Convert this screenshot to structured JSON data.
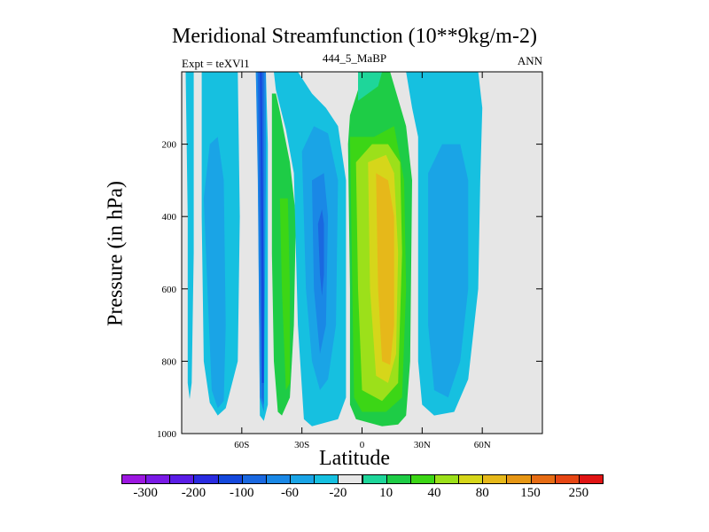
{
  "chart_data": {
    "type": "contour",
    "title": "Meridional Streamfunction (10**9kg/m-2)",
    "left_label": "Expt = teXVl1",
    "center_label": "444_5_MaBP",
    "right_label": "ANN",
    "xlabel": "Latitude",
    "ylabel": "Pressure (in hPa)",
    "xlim": [
      -90,
      90
    ],
    "ylim": [
      1000,
      0
    ],
    "x_ticks": [
      {
        "value": -60,
        "label": "60S"
      },
      {
        "value": -30,
        "label": "30S"
      },
      {
        "value": 0,
        "label": "0"
      },
      {
        "value": 30,
        "label": "30N"
      },
      {
        "value": 60,
        "label": "60N"
      }
    ],
    "y_ticks": [
      {
        "value": 200,
        "label": "200"
      },
      {
        "value": 400,
        "label": "400"
      },
      {
        "value": 600,
        "label": "600"
      },
      {
        "value": 800,
        "label": "800"
      },
      {
        "value": 1000,
        "label": "1000"
      }
    ],
    "colorbar": {
      "colors": [
        "#9c17e0",
        "#7a1ae6",
        "#5a1de6",
        "#2a2be0",
        "#1448dc",
        "#1a68e0",
        "#1a88e6",
        "#1aa4e6",
        "#16c0e0",
        "#e6e6e6",
        "#1ed69a",
        "#1ecc46",
        "#3cd616",
        "#9ce01a",
        "#d6d61a",
        "#e6b81a",
        "#e69614",
        "#e66c14",
        "#e64614",
        "#e01414"
      ],
      "labels": [
        "-300",
        "-200",
        "-100",
        "-60",
        "-20",
        "10",
        "40",
        "80",
        "150",
        "250"
      ]
    },
    "regions": [
      {
        "name": "cell-far-south",
        "color": "#16c0e0",
        "polygon": [
          [
            -88,
            0
          ],
          [
            -87,
            400
          ],
          [
            -87,
            860
          ],
          [
            -86,
            905
          ],
          [
            -85,
            860
          ],
          [
            -84,
            500
          ],
          [
            -84,
            0
          ]
        ]
      },
      {
        "name": "cell-south-polar",
        "color": "#16c0e0",
        "polygon": [
          [
            -80,
            0
          ],
          [
            -80,
            400
          ],
          [
            -79,
            800
          ],
          [
            -76,
            915
          ],
          [
            -72,
            950
          ],
          [
            -68,
            930
          ],
          [
            -62,
            800
          ],
          [
            -61,
            400
          ],
          [
            -62,
            0
          ],
          [
            -53,
            0
          ],
          [
            -52,
            200
          ],
          [
            -51,
            950
          ],
          [
            -49,
            965
          ],
          [
            -47,
            920
          ],
          [
            -47,
            200
          ],
          [
            -48,
            0
          ]
        ]
      },
      {
        "name": "cell-south-polar-inner",
        "color": "#1aa4e6",
        "polygon": [
          [
            -79,
            350
          ],
          [
            -77,
            620
          ],
          [
            -75,
            880
          ],
          [
            -72,
            930
          ],
          [
            -69,
            910
          ],
          [
            -68,
            700
          ],
          [
            -69,
            300
          ],
          [
            -72,
            180
          ],
          [
            -76,
            200
          ]
        ]
      },
      {
        "name": "cell-60s-strip",
        "color": "#1a88e6",
        "polygon": [
          [
            -53,
            0
          ],
          [
            -52,
            300
          ],
          [
            -51,
            900
          ],
          [
            -49,
            940
          ],
          [
            -48,
            300
          ],
          [
            -48,
            0
          ]
        ]
      },
      {
        "name": "cell-60s-core",
        "color": "#1a68e0",
        "polygon": [
          [
            -52,
            0
          ],
          [
            -51,
            500
          ],
          [
            -50,
            900
          ],
          [
            -49,
            920
          ],
          [
            -49,
            500
          ],
          [
            -49,
            0
          ]
        ]
      },
      {
        "name": "cell-60s-peak",
        "color": "#1448dc",
        "polygon": [
          [
            -51,
            0
          ],
          [
            -50,
            600
          ],
          [
            -50,
            860
          ],
          [
            -49,
            860
          ],
          [
            -49,
            600
          ],
          [
            -50,
            0
          ]
        ]
      },
      {
        "name": "cell-ferrel-south",
        "color": "#1ecc46",
        "polygon": [
          [
            -45,
            60
          ],
          [
            -45,
            500
          ],
          [
            -44,
            800
          ],
          [
            -42,
            940
          ],
          [
            -40,
            950
          ],
          [
            -36,
            900
          ],
          [
            -34,
            700
          ],
          [
            -33,
            400
          ],
          [
            -36,
            250
          ],
          [
            -41,
            110
          ],
          [
            -43,
            60
          ]
        ]
      },
      {
        "name": "cell-ferrel-south-inner",
        "color": "#3cd616",
        "polygon": [
          [
            -41,
            350
          ],
          [
            -40,
            600
          ],
          [
            -38,
            880
          ],
          [
            -36,
            860
          ],
          [
            -36,
            600
          ],
          [
            -37,
            350
          ]
        ]
      },
      {
        "name": "cell-hadley-south",
        "color": "#16c0e0",
        "polygon": [
          [
            -44,
            0
          ],
          [
            -43,
            50
          ],
          [
            -38,
            160
          ],
          [
            -34,
            280
          ],
          [
            -32,
            700
          ],
          [
            -29,
            960
          ],
          [
            -25,
            980
          ],
          [
            -12,
            960
          ],
          [
            -8,
            900
          ],
          [
            -8,
            300
          ],
          [
            -12,
            150
          ],
          [
            -18,
            100
          ],
          [
            -25,
            60
          ],
          [
            -32,
            0
          ]
        ]
      },
      {
        "name": "cell-hadley-south-1",
        "color": "#1aa4e6",
        "polygon": [
          [
            -30,
            220
          ],
          [
            -28,
            600
          ],
          [
            -25,
            800
          ],
          [
            -21,
            880
          ],
          [
            -17,
            850
          ],
          [
            -13,
            700
          ],
          [
            -12,
            300
          ],
          [
            -17,
            170
          ],
          [
            -24,
            150
          ]
        ]
      },
      {
        "name": "cell-hadley-south-2",
        "color": "#1a88e6",
        "polygon": [
          [
            -25,
            300
          ],
          [
            -24,
            600
          ],
          [
            -21,
            780
          ],
          [
            -18,
            700
          ],
          [
            -17,
            400
          ],
          [
            -19,
            280
          ]
        ]
      },
      {
        "name": "cell-hadley-south-3",
        "color": "#1a68e0",
        "polygon": [
          [
            -22,
            420
          ],
          [
            -21,
            560
          ],
          [
            -20,
            620
          ],
          [
            -19,
            560
          ],
          [
            -19,
            420
          ],
          [
            -20,
            380
          ]
        ]
      },
      {
        "name": "cell-hadley-north",
        "color": "#1ecc46",
        "polygon": [
          [
            -7,
            200
          ],
          [
            -6,
            600
          ],
          [
            -6,
            920
          ],
          [
            -3,
            960
          ],
          [
            10,
            980
          ],
          [
            18,
            975
          ],
          [
            22,
            950
          ],
          [
            24,
            800
          ],
          [
            25,
            300
          ],
          [
            22,
            150
          ],
          [
            14,
            0
          ],
          [
            -2,
            0
          ],
          [
            -2,
            50
          ],
          [
            -6,
            120
          ]
        ]
      },
      {
        "name": "cell-hadley-north-lobe",
        "color": "#1ed69a",
        "polygon": [
          [
            -2,
            0
          ],
          [
            -2,
            80
          ],
          [
            8,
            40
          ],
          [
            10,
            0
          ]
        ]
      },
      {
        "name": "cell-hadley-north-inner",
        "color": "#3cd616",
        "polygon": [
          [
            -6,
            180
          ],
          [
            -5,
            550
          ],
          [
            -4,
            900
          ],
          [
            0,
            940
          ],
          [
            12,
            940
          ],
          [
            20,
            900
          ],
          [
            22,
            600
          ],
          [
            21,
            300
          ],
          [
            16,
            150
          ],
          [
            6,
            180
          ]
        ]
      },
      {
        "name": "cell-hadley-north-1",
        "color": "#9ce01a",
        "polygon": [
          [
            -3,
            250
          ],
          [
            -2,
            600
          ],
          [
            0,
            880
          ],
          [
            10,
            910
          ],
          [
            18,
            860
          ],
          [
            20,
            500
          ],
          [
            19,
            250
          ],
          [
            13,
            200
          ],
          [
            5,
            200
          ]
        ]
      },
      {
        "name": "cell-hadley-north-2",
        "color": "#d6d61a",
        "polygon": [
          [
            3,
            250
          ],
          [
            4,
            600
          ],
          [
            7,
            840
          ],
          [
            13,
            860
          ],
          [
            17,
            780
          ],
          [
            18,
            500
          ],
          [
            16,
            280
          ],
          [
            12,
            230
          ]
        ]
      },
      {
        "name": "cell-hadley-north-3",
        "color": "#e6b81a",
        "polygon": [
          [
            7,
            280
          ],
          [
            8,
            600
          ],
          [
            10,
            800
          ],
          [
            14,
            810
          ],
          [
            16,
            700
          ],
          [
            16,
            400
          ],
          [
            13,
            300
          ]
        ]
      },
      {
        "name": "cell-ferrel-north",
        "color": "#16c0e0",
        "polygon": [
          [
            22,
            0
          ],
          [
            25,
            100
          ],
          [
            28,
            180
          ],
          [
            28,
            800
          ],
          [
            30,
            920
          ],
          [
            36,
            950
          ],
          [
            46,
            940
          ],
          [
            53,
            850
          ],
          [
            58,
            600
          ],
          [
            59,
            300
          ],
          [
            60,
            100
          ],
          [
            58,
            0
          ]
        ]
      },
      {
        "name": "cell-ferrel-north-inner",
        "color": "#1aa4e6",
        "polygon": [
          [
            33,
            280
          ],
          [
            33,
            700
          ],
          [
            36,
            880
          ],
          [
            43,
            900
          ],
          [
            49,
            800
          ],
          [
            53,
            600
          ],
          [
            53,
            300
          ],
          [
            49,
            200
          ],
          [
            40,
            200
          ]
        ]
      }
    ]
  }
}
